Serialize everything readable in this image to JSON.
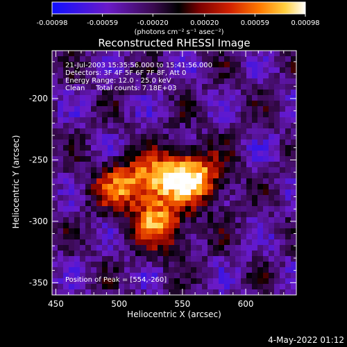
{
  "colorbar": {
    "ticks": [
      "-0.00098",
      "-0.00059",
      "-0.00020",
      "0.00020",
      "0.00059",
      "0.00098"
    ],
    "tick_values": [
      -0.00098,
      -0.00059,
      -0.0002,
      0.0002,
      0.00059,
      0.00098
    ],
    "range": [
      -0.00098,
      0.00098
    ],
    "units_label": "(photons cm⁻² s⁻¹ asec⁻²)",
    "colors": [
      "#1010ff",
      "#6a1ac8",
      "#3a0a50",
      "#000000",
      "#7a0000",
      "#d02000",
      "#ff7a00",
      "#ffd040",
      "#ffffff"
    ]
  },
  "chart_data": {
    "type": "heatmap",
    "title": "Reconstructed RHESSI Image",
    "xlabel": "Heliocentric X (arcsec)",
    "ylabel": "Heliocentric Y (arcsec)",
    "xlim": [
      447,
      640
    ],
    "ylim": [
      -360,
      -161
    ],
    "xticks": [
      450,
      500,
      550,
      600
    ],
    "xtick_labels": [
      "450",
      "500",
      "550",
      "600"
    ],
    "yticks": [
      -200,
      -250,
      -300,
      -350
    ],
    "ytick_labels": [
      "-200",
      "-250",
      "-300",
      "-350"
    ],
    "value_range": [
      -0.00098,
      0.00098
    ],
    "sources": [
      {
        "x": 554,
        "y": -260,
        "value": 0.00098
      },
      {
        "x": 530,
        "y": -267,
        "value": 0.0008
      },
      {
        "x": 507,
        "y": -268,
        "value": 0.0006
      },
      {
        "x": 528,
        "y": -297,
        "value": 0.0007
      },
      {
        "x": 570,
        "y": -270,
        "value": 0.0005
      },
      {
        "x": 490,
        "y": -275,
        "value": 0.00035
      },
      {
        "x": 540,
        "y": -310,
        "value": 0.00045
      }
    ],
    "annotations": [
      "21-Jul-2003 15:35:56.000 to 15:41:56.000",
      "Detectors: 3F 4F 5F 6F 7F 8F, Att 0",
      "Energy Range: 12.0 - 25.0 keV",
      "Clean     Total counts: 7.18E+03"
    ],
    "peak_label": "Position of Peak = [554,-260]",
    "peak": {
      "x": 554,
      "y": -260
    }
  },
  "footer": {
    "timestamp": "4-May-2022 01:12"
  }
}
